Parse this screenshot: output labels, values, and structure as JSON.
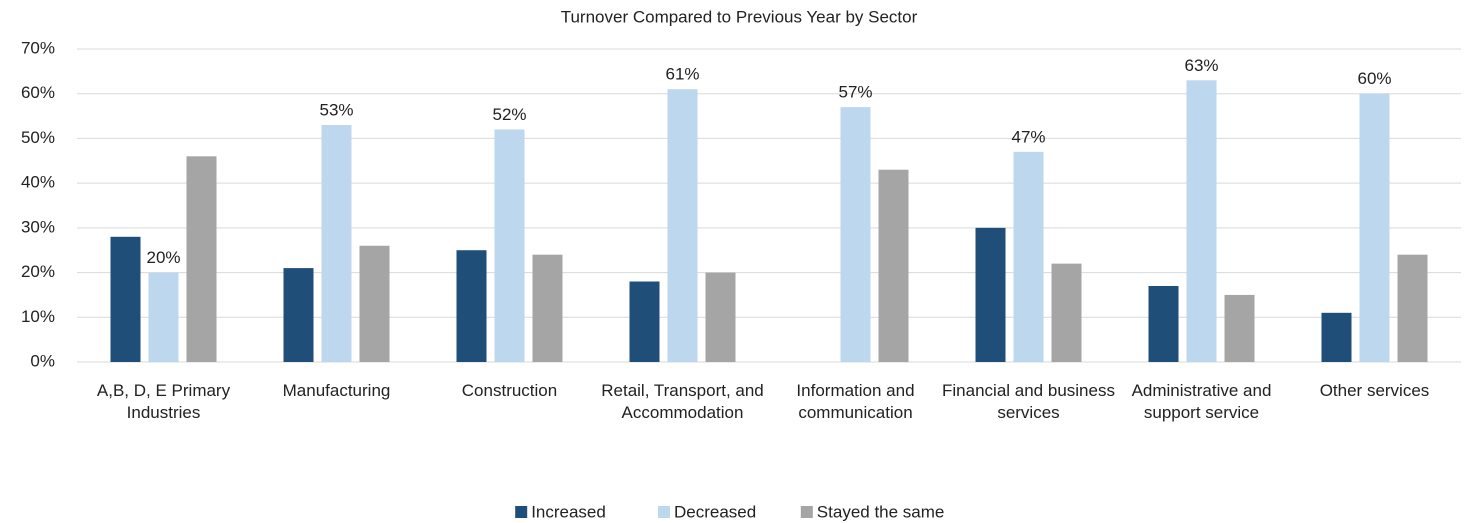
{
  "chart_data": {
    "type": "bar",
    "title": "Turnover Compared to Previous Year by Sector",
    "categories": [
      "A,B, D, E Primary Industries",
      "Manufacturing",
      "Construction",
      "Retail, Transport, and Accommodation",
      "Information and communication",
      "Financial and business services",
      "Administrative and support service",
      "Other services"
    ],
    "series": [
      {
        "name": "Increased",
        "color": "#1f4e79",
        "values": [
          28,
          21,
          25,
          18,
          0,
          30,
          17,
          11
        ]
      },
      {
        "name": "Decreased",
        "color": "#bdd7ee",
        "values": [
          20,
          53,
          52,
          61,
          57,
          47,
          63,
          60
        ],
        "value_labels": [
          "20%",
          "53%",
          "52%",
          "61%",
          "57%",
          "47%",
          "63%",
          "60%"
        ]
      },
      {
        "name": "Stayed the same",
        "color": "#a5a5a5",
        "values": [
          46,
          26,
          24,
          20,
          43,
          22,
          15,
          24
        ]
      }
    ],
    "ylim": [
      0,
      70
    ],
    "yticks": [
      {
        "value": 0,
        "label": "0%"
      },
      {
        "value": 10,
        "label": "10%"
      },
      {
        "value": 20,
        "label": "20%"
      },
      {
        "value": 30,
        "label": "30%"
      },
      {
        "value": 40,
        "label": "40%"
      },
      {
        "value": 50,
        "label": "50%"
      },
      {
        "value": 60,
        "label": "60%"
      },
      {
        "value": 70,
        "label": "70%"
      }
    ],
    "grid": true,
    "legend": "bottom"
  }
}
